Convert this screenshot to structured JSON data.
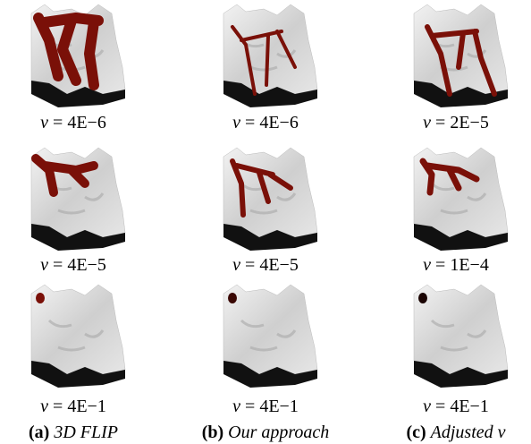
{
  "panels": [
    [
      {
        "symbol": "ν",
        "value": "= 4E−6"
      },
      {
        "symbol": "ν",
        "value": "= 4E−6"
      },
      {
        "symbol": "ν",
        "value": "= 2E−5"
      }
    ],
    [
      {
        "symbol": "ν",
        "value": "= 4E−5"
      },
      {
        "symbol": "ν",
        "value": "= 4E−5"
      },
      {
        "symbol": "ν",
        "value": "= 1E−4"
      }
    ],
    [
      {
        "symbol": "ν",
        "value": "= 4E−1"
      },
      {
        "symbol": "ν",
        "value": "= 4E−1"
      },
      {
        "symbol": "ν",
        "value": "= 4E−1"
      }
    ]
  ],
  "columns": [
    {
      "tag": "(a)",
      "label": "3D FLIP"
    },
    {
      "tag": "(b)",
      "label": "Our approach"
    },
    {
      "tag": "(c)",
      "label": "Adjusted ν"
    }
  ]
}
